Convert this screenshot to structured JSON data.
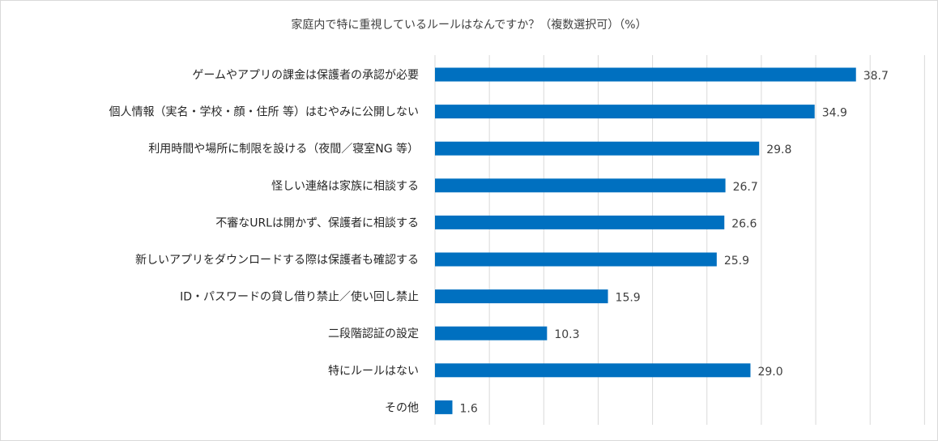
{
  "chart_data": {
    "type": "bar",
    "orientation": "horizontal",
    "title": "家庭内で特に重視しているルールはなんですか？（複数選択可）（%）",
    "categories": [
      "ゲームやアプリの課金は保護者の承認が必要",
      "個人情報（実名・学校・顔・住所 等）はむやみに公開しない",
      "利用時間や場所に制限を設ける（夜間／寝室NG 等）",
      "怪しい連絡は家族に相談する",
      "不審なURLは開かず、保護者に相談する",
      "新しいアプリをダウンロードする際は保護者も確認する",
      "ID・パスワードの貸し借り禁止／使い回し禁止",
      "二段階認証の設定",
      "特にルールはない",
      "その他"
    ],
    "values": [
      38.7,
      34.9,
      29.8,
      26.7,
      26.6,
      25.9,
      15.9,
      10.3,
      29.0,
      1.6
    ],
    "value_labels": [
      "38.7",
      "34.9",
      "29.8",
      "26.7",
      "26.6",
      "25.9",
      "15.9",
      "10.3",
      "29.0",
      "1.6"
    ],
    "xlim": [
      0,
      45
    ],
    "gridline_step": 5,
    "grid": true,
    "legend": "none",
    "bar_color": "#0070c0",
    "grid_color": "#d9d9d9"
  }
}
